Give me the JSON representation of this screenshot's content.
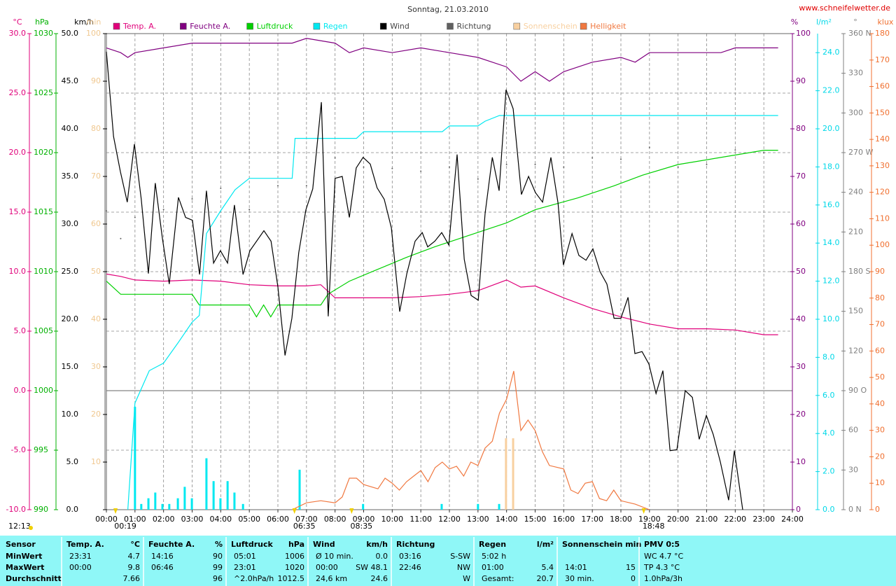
{
  "chart_data": {
    "type": "line",
    "title": "Sonntag, 21.03.2010",
    "source": "www.schneifelwetter.de",
    "xlim": [
      0,
      24
    ],
    "xticks": [
      {
        "value": 0,
        "label": "00:00"
      },
      {
        "value": 1,
        "label": "01:00"
      },
      {
        "value": 2,
        "label": "02:00"
      },
      {
        "value": 3,
        "label": "03:00"
      },
      {
        "value": 4,
        "label": "04:00"
      },
      {
        "value": 5,
        "label": "05:00"
      },
      {
        "value": 6,
        "label": "06:00"
      },
      {
        "value": 7,
        "label": "07:00"
      },
      {
        "value": 8,
        "label": "08:00"
      },
      {
        "value": 9,
        "label": "09:00"
      },
      {
        "value": 10,
        "label": "10:00"
      },
      {
        "value": 11,
        "label": "11:00"
      },
      {
        "value": 12,
        "label": "12:00"
      },
      {
        "value": 13,
        "label": "13:00"
      },
      {
        "value": 14,
        "label": "14:00"
      },
      {
        "value": 15,
        "label": "15:00"
      },
      {
        "value": 16,
        "label": "16:00"
      },
      {
        "value": 17,
        "label": "17:00"
      },
      {
        "value": 18,
        "label": "18:00"
      },
      {
        "value": 19,
        "label": "19:00"
      },
      {
        "value": 20,
        "label": "20:00"
      },
      {
        "value": 21,
        "label": "21:00"
      },
      {
        "value": 22,
        "label": "22:00"
      },
      {
        "value": 23,
        "label": "23:00"
      },
      {
        "value": 24,
        "label": "24:00"
      }
    ],
    "grid": true,
    "reference_line": {
      "axis": "temp",
      "value": 0
    },
    "axes": {
      "temp": {
        "label": "°C",
        "color": "#e0007a",
        "lim": [
          -10,
          30
        ],
        "ticks": [
          {
            "value": -10,
            "label": "-10.0"
          },
          {
            "value": -5,
            "label": "-5.0"
          },
          {
            "value": 0,
            "label": "0.0"
          },
          {
            "value": 5,
            "label": "5.0"
          },
          {
            "value": 10,
            "label": "10.0"
          },
          {
            "value": 15,
            "label": "15.0"
          },
          {
            "value": 20,
            "label": "20.0"
          },
          {
            "value": 25,
            "label": "25.0"
          },
          {
            "value": 30,
            "label": "30.0"
          }
        ]
      },
      "press": {
        "label": "hPa",
        "color": "#00b000",
        "lim": [
          990,
          1030
        ],
        "ticks": [
          990,
          995,
          1000,
          1005,
          1010,
          1015,
          1020,
          1025,
          1030
        ]
      },
      "wind": {
        "label": "km/h",
        "color": "#000000",
        "lim": [
          0,
          50
        ],
        "ticks": [
          {
            "value": 0,
            "label": "0.0"
          },
          {
            "value": 5,
            "label": "5.0"
          },
          {
            "value": 10,
            "label": "10.0"
          },
          {
            "value": 15,
            "label": "15.0"
          },
          {
            "value": 20,
            "label": "20.0"
          },
          {
            "value": 25,
            "label": "25.0"
          },
          {
            "value": 30,
            "label": "30.0"
          },
          {
            "value": 35,
            "label": "35.0"
          },
          {
            "value": 40,
            "label": "40.0"
          },
          {
            "value": 45,
            "label": "45.0"
          },
          {
            "value": 50,
            "label": "50.0"
          }
        ]
      },
      "sun": {
        "label": "min",
        "color": "#f0c890",
        "lim": [
          0,
          100
        ],
        "ticks": [
          10,
          20,
          30,
          40,
          50,
          60,
          70,
          80,
          90,
          100
        ]
      },
      "hum": {
        "label": "%",
        "color": "#800080",
        "lim": [
          0,
          100
        ],
        "ticks": [
          0,
          10,
          20,
          30,
          40,
          50,
          60,
          70,
          80,
          90,
          100
        ]
      },
      "rain": {
        "label": "l/m²",
        "color": "#00d8e8",
        "lim": [
          0,
          25
        ],
        "ticks": [
          {
            "value": 0,
            "label": "0.0"
          },
          {
            "value": 2,
            "label": "2.0"
          },
          {
            "value": 4,
            "label": "4.0"
          },
          {
            "value": 6,
            "label": "6.0"
          },
          {
            "value": 8,
            "label": "8.0"
          },
          {
            "value": 10,
            "label": "10.0"
          },
          {
            "value": 12,
            "label": "12.0"
          },
          {
            "value": 14,
            "label": "14.0"
          },
          {
            "value": 16,
            "label": "16.0"
          },
          {
            "value": 18,
            "label": "18.0"
          },
          {
            "value": 20,
            "label": "20.0"
          },
          {
            "value": 22,
            "label": "22.0"
          },
          {
            "value": 24,
            "label": "24.0"
          }
        ]
      },
      "dir": {
        "label": "°",
        "color": "#808080",
        "lim": [
          0,
          360
        ],
        "ticks": [
          {
            "value": 0,
            "label": "0 N"
          },
          30,
          60,
          {
            "value": 90,
            "label": "90 O"
          },
          120,
          150,
          {
            "value": 180,
            "label": "180 S"
          },
          210,
          240,
          {
            "value": 270,
            "label": "270 W"
          },
          300,
          330,
          {
            "value": 360,
            "label": "360 N"
          }
        ]
      },
      "lux": {
        "label": "klux",
        "color": "#f07030",
        "lim": [
          0,
          180
        ],
        "ticks": [
          0,
          10,
          20,
          30,
          40,
          50,
          60,
          70,
          80,
          90,
          100,
          110,
          120,
          130,
          140,
          150,
          160,
          170,
          180
        ]
      }
    },
    "series": [
      {
        "name": "Temp. A.",
        "color": "#e0007a",
        "axis": "temp",
        "style": "line",
        "x": [
          0,
          0.5,
          1,
          2,
          3,
          4,
          5,
          6,
          6.5,
          7,
          7.5,
          8,
          9,
          10,
          11,
          12,
          13,
          14,
          14.5,
          15,
          16,
          17,
          18,
          19,
          20,
          21,
          22,
          23,
          23.5
        ],
        "values": [
          9.8,
          9.6,
          9.3,
          9.2,
          9.3,
          9.2,
          8.9,
          8.8,
          8.8,
          8.8,
          8.9,
          7.8,
          7.8,
          7.8,
          7.9,
          8.1,
          8.4,
          9.3,
          8.7,
          8.8,
          7.8,
          6.9,
          6.2,
          5.6,
          5.2,
          5.2,
          5.1,
          4.7,
          4.7
        ]
      },
      {
        "name": "Feuchte A.",
        "color": "#800080",
        "axis": "hum",
        "style": "line",
        "x": [
          0,
          0.5,
          0.75,
          1,
          2,
          3,
          6.5,
          7,
          8,
          8.5,
          9,
          10,
          11,
          12,
          13,
          13.5,
          14,
          14.5,
          15,
          15.5,
          16,
          17,
          18,
          18.5,
          19,
          21.5,
          22,
          23.5
        ],
        "values": [
          97,
          96,
          95,
          96,
          97,
          98,
          98,
          99,
          98,
          96,
          97,
          96,
          97,
          96,
          95,
          94,
          93,
          90,
          92,
          90,
          92,
          94,
          95,
          94,
          96,
          96,
          97,
          97
        ]
      },
      {
        "name": "Luftdruck",
        "color": "#00d000",
        "axis": "press",
        "style": "line",
        "x": [
          0,
          0.5,
          3,
          3.25,
          5,
          5.25,
          5.5,
          5.75,
          6,
          7.5,
          7.75,
          8.5,
          9.5,
          10.5,
          11.5,
          12.75,
          14,
          15,
          16.5,
          17.75,
          18.75,
          20,
          23,
          23.5
        ],
        "values": [
          1009.2,
          1008.1,
          1008.1,
          1007.2,
          1007.2,
          1006.2,
          1007.2,
          1006.2,
          1007.2,
          1007.2,
          1008.1,
          1009.2,
          1010.2,
          1011.2,
          1012.1,
          1013.1,
          1014.1,
          1015.2,
          1016.2,
          1017.2,
          1018.1,
          1019,
          1020.2,
          1020.2
        ]
      },
      {
        "name": "Regen",
        "color": "#00e8f0",
        "axis": "rain",
        "style": "line",
        "x": [
          0.75,
          1,
          1.5,
          2,
          2.5,
          3,
          3.25,
          3.5,
          4,
          4.5,
          5,
          6.5,
          6.6,
          8.75,
          9,
          11.75,
          12,
          13,
          13.25,
          13.75,
          23.5
        ],
        "values": [
          0,
          5.6,
          7.3,
          7.7,
          8.75,
          9.85,
          10.2,
          14.5,
          15.7,
          16.8,
          17.4,
          17.4,
          19.5,
          19.5,
          19.85,
          19.85,
          20.15,
          20.15,
          20.4,
          20.7,
          20.7
        ],
        "bars": {
          "x": [
            1,
            1.22,
            1.47,
            1.71,
            1.96,
            2.2,
            2.5,
            2.74,
            2.99,
            3.5,
            3.75,
            3.99,
            4.24,
            4.48,
            4.78,
            6.76,
            8.98,
            11.73,
            13,
            13.74
          ],
          "values": [
            5.4,
            0.3,
            0.6,
            0.9,
            0.3,
            0.3,
            0.6,
            1.2,
            0.6,
            2.7,
            1.5,
            0.6,
            1.5,
            0.9,
            0.3,
            2.1,
            0.3,
            0.3,
            0.3,
            0.3
          ]
        }
      },
      {
        "name": "Wind",
        "color": "#000000",
        "axis": "wind",
        "style": "line",
        "x": [
          0,
          0.25,
          0.49,
          0.73,
          0.98,
          1.22,
          1.47,
          1.71,
          1.96,
          2.2,
          2.52,
          2.77,
          3.01,
          3.26,
          3.5,
          3.75,
          3.99,
          4.24,
          4.48,
          4.78,
          5.02,
          5.51,
          5.76,
          6.0,
          6.25,
          6.49,
          6.73,
          6.98,
          7.22,
          7.52,
          7.76,
          8.0,
          8.25,
          8.5,
          8.74,
          8.98,
          9.23,
          9.47,
          9.72,
          9.97,
          10.26,
          10.51,
          10.8,
          11.05,
          11.24,
          11.49,
          11.73,
          11.98,
          12.27,
          12.52,
          12.76,
          13.01,
          13.25,
          13.5,
          13.74,
          13.98,
          14.23,
          14.52,
          14.77,
          15.01,
          15.26,
          15.55,
          15.8,
          15.99,
          16.29,
          16.53,
          16.78,
          17.02,
          17.27,
          17.51,
          17.76,
          18.0,
          18.25,
          18.49,
          18.74,
          18.98,
          19.23,
          19.47,
          19.72,
          19.96,
          20.25,
          20.5,
          20.74,
          20.99,
          21.23,
          21.48,
          21.77,
          21.97,
          22.26
        ],
        "values": [
          48.1,
          39.2,
          35.5,
          32.3,
          38.4,
          32.6,
          24.8,
          34.3,
          28.5,
          23.7,
          32.8,
          30.7,
          30.4,
          24.7,
          33.5,
          25.9,
          27.2,
          25.9,
          32.0,
          24.7,
          27.2,
          29.3,
          28.2,
          23.4,
          16.2,
          20.1,
          27.0,
          31.5,
          33.7,
          42.8,
          20.3,
          34.8,
          35.0,
          30.7,
          35.9,
          37.0,
          36.3,
          33.8,
          32.6,
          29.6,
          20.8,
          24.8,
          28.2,
          29.1,
          27.6,
          28.2,
          29.1,
          27.8,
          37.3,
          26.3,
          22.5,
          22.0,
          31.1,
          37.0,
          33.5,
          44.1,
          42.1,
          33.1,
          35.0,
          33.3,
          32.3,
          37.0,
          32.2,
          25.7,
          29.0,
          26.7,
          26.2,
          27.4,
          25.0,
          23.7,
          20.1,
          20.1,
          22.3,
          16.4,
          16.6,
          15.3,
          12.2,
          14.6,
          6.2,
          6.3,
          12.5,
          11.8,
          7.4,
          9.9,
          7.9,
          5.0,
          1.0,
          6.2,
          0.0
        ]
      },
      {
        "name": "Richtung",
        "color": "#606060",
        "axis": "dir",
        "style": "dots",
        "x": [
          0,
          0.5,
          1,
          2,
          3,
          4,
          5,
          6,
          7,
          8,
          9,
          10,
          11,
          12,
          13,
          14,
          15,
          16,
          17,
          18,
          19,
          20,
          21,
          22,
          23
        ],
        "values": [
          226,
          205,
          221,
          227,
          235,
          243,
          227,
          245,
          245,
          266,
          259,
          258,
          256,
          259,
          250,
          261,
          261,
          259,
          266,
          265,
          274,
          259,
          261,
          272,
          270
        ]
      },
      {
        "name": "Sonnenschein",
        "color": "#f8d0a0",
        "axis": "sun",
        "style": "bars",
        "x": [
          13.98,
          14.23
        ],
        "values": [
          15,
          15
        ]
      },
      {
        "name": "Helligkeit",
        "color": "#f07840",
        "axis": "lux",
        "style": "line",
        "x": [
          6.5,
          7,
          7.5,
          8,
          8.25,
          8.5,
          8.75,
          9,
          9.5,
          9.75,
          10,
          10.25,
          10.5,
          10.75,
          11,
          11.25,
          11.5,
          11.75,
          12,
          12.25,
          12.5,
          12.75,
          13,
          13.25,
          13.5,
          13.75,
          14,
          14.25,
          14.5,
          14.75,
          15,
          15.25,
          15.5,
          16,
          16.25,
          16.5,
          16.75,
          17,
          17.25,
          17.5,
          17.75,
          18,
          18.5,
          19
        ],
        "values": [
          0,
          2.6,
          3.4,
          2.6,
          4.8,
          11.9,
          11.9,
          9.5,
          7.9,
          11.9,
          10,
          7.4,
          10.6,
          12.7,
          14.8,
          10.6,
          15.9,
          18,
          15.4,
          16.4,
          12.7,
          18,
          16.7,
          23.3,
          25.9,
          36.5,
          41.8,
          52.4,
          29.9,
          33.9,
          29.9,
          22,
          16.7,
          15.4,
          7.4,
          6.1,
          10,
          10.6,
          4.2,
          3.4,
          7.4,
          3.4,
          2.1,
          0
        ]
      }
    ],
    "markers": [
      {
        "label": "00:19",
        "x": 0.32
      },
      {
        "label": "06:35",
        "x": 6.58
      },
      {
        "label": "08:35",
        "x": 8.58
      },
      {
        "label": "18:48",
        "x": 18.8
      }
    ],
    "time_stamp": "12:13"
  },
  "table": {
    "blocks": [
      {
        "title": "Sensor",
        "rows": [
          [
            "MinWert"
          ],
          [
            "MaxWert"
          ],
          [
            "Durchschnitt"
          ]
        ]
      },
      {
        "title": "Temp. A.",
        "unit": "°C",
        "rows": [
          [
            "23:31",
            "4.7"
          ],
          [
            "00:00",
            "9.8"
          ],
          [
            null,
            "7.66"
          ]
        ]
      },
      {
        "title": "Feuchte A.",
        "unit": "%",
        "rows": [
          [
            "14:16",
            "90"
          ],
          [
            "06:46",
            "99"
          ],
          [
            null,
            "96"
          ]
        ]
      },
      {
        "title": "Luftdruck",
        "unit": "hPa",
        "rows": [
          [
            "05:01",
            "1006"
          ],
          [
            "23:01",
            "1020"
          ],
          [
            "^2.0hPa/h",
            "1012.5"
          ]
        ]
      },
      {
        "title": "Wind",
        "unit": "km/h",
        "rows": [
          [
            "Ø 10 min.",
            "0.0"
          ],
          [
            "00:00",
            "SW 48.1"
          ],
          [
            "24,6 km",
            "24.6"
          ]
        ]
      },
      {
        "title": "Richtung",
        "rows": [
          [
            "03:16",
            "S-SW"
          ],
          [
            "22:46",
            "NW"
          ],
          [
            null,
            "W"
          ]
        ]
      },
      {
        "title": "Regen",
        "unit": "l/m²",
        "rows": [
          [
            "5:02 h",
            null
          ],
          [
            "01:00",
            "5.4"
          ],
          [
            "Gesamt:",
            "20.7"
          ]
        ]
      },
      {
        "title": "Sonnenschein min",
        "rows": [
          [
            null,
            null
          ],
          [
            "14:01",
            "15"
          ],
          [
            "30 min.",
            "0"
          ]
        ]
      },
      {
        "title": "PMV 0:5",
        "rows": [
          [
            "WC 4.7 °C"
          ],
          [
            "TP 4.3 °C"
          ],
          [
            "1.0hPa/3h"
          ]
        ]
      }
    ]
  }
}
